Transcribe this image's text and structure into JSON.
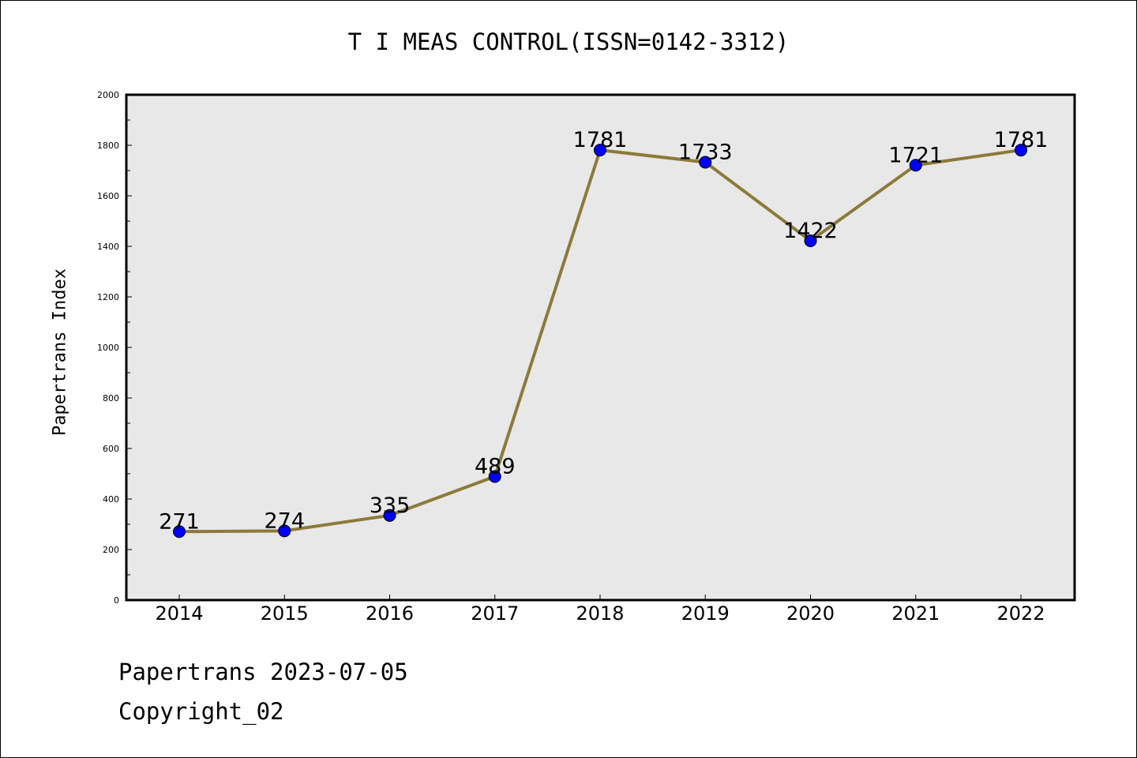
{
  "chart_data": {
    "type": "line",
    "title": "T I MEAS CONTROL(ISSN=0142-3312)",
    "xlabel": "",
    "ylabel": "Papertrans Index",
    "categories": [
      "2014",
      "2015",
      "2016",
      "2017",
      "2018",
      "2019",
      "2020",
      "2021",
      "2022"
    ],
    "series": [
      {
        "values": [
          271,
          274,
          335,
          489,
          1781,
          1733,
          1422,
          1721,
          1781
        ]
      }
    ],
    "ylim": [
      0,
      2000
    ],
    "yticks": [
      0,
      200,
      400,
      600,
      800,
      1000,
      1200,
      1400,
      1600,
      1800,
      2000
    ],
    "data_labels": [
      "271",
      "274",
      "335",
      "489",
      "1781",
      "1733",
      "1422",
      "1721",
      "1781"
    ],
    "grid": false,
    "legend": "none",
    "colors": {
      "line": "#8c7a3a",
      "marker": "#0000ff",
      "plot_bg": "#e8e8e8"
    }
  },
  "footer": {
    "date_line": "Papertrans 2023-07-05",
    "copyright": "Copyright_02"
  }
}
